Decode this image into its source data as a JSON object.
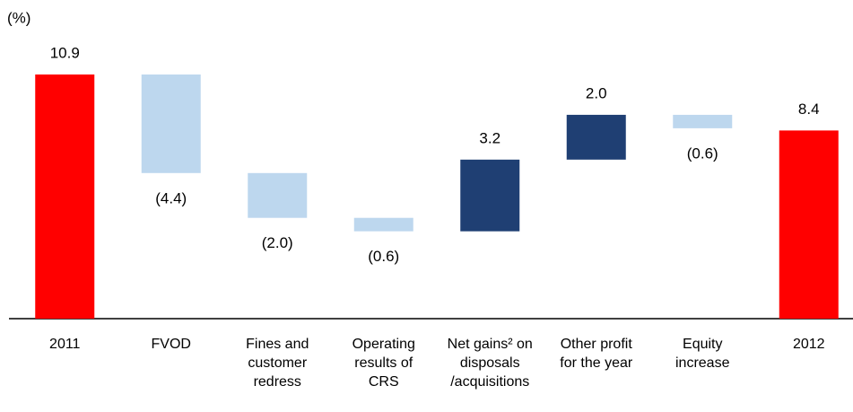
{
  "chart_data": {
    "type": "waterfall",
    "unit_label": "(%)",
    "categories": [
      "2011",
      "FVOD",
      "Fines and customer redress",
      "Operating results of CRS",
      "Net gains² on disposals /acquisitions",
      "Other profit for the year",
      "Equity increase",
      "2012"
    ],
    "values": [
      10.9,
      -4.4,
      -2.0,
      -0.6,
      3.2,
      2.0,
      -0.6,
      8.4
    ],
    "value_labels": [
      "10.9",
      "(4.4)",
      "(2.0)",
      "(0.6)",
      "3.2",
      "2.0",
      "(0.6)",
      "8.4"
    ],
    "total_color": "#ff0000",
    "increase_color": "#1f3f73",
    "decrease_color": "#bdd7ee",
    "ylim": [
      0,
      12
    ],
    "grid": false
  }
}
